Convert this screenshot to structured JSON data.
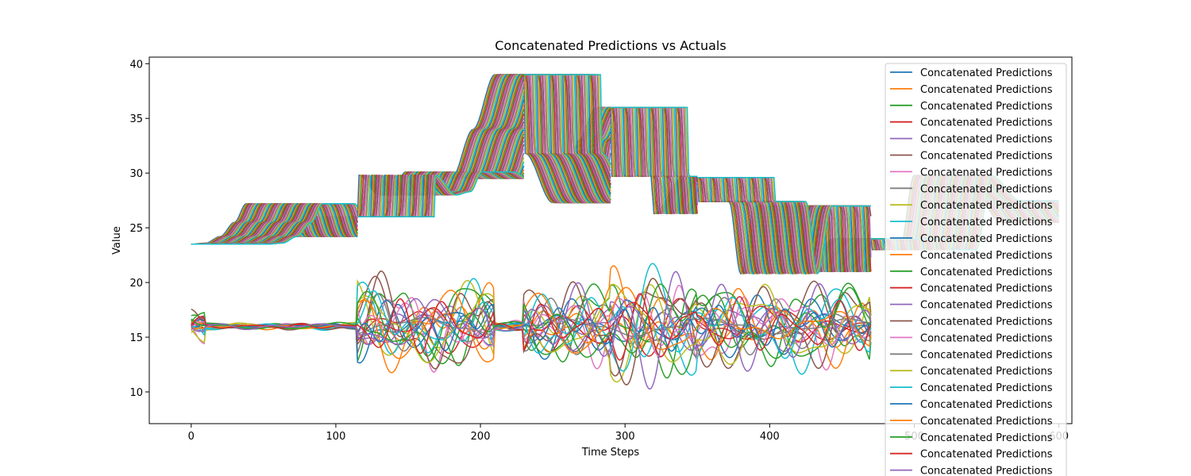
{
  "chart_data": {
    "type": "line",
    "title": "Concatenated Predictions vs Actuals",
    "xlabel": "Time Steps",
    "ylabel": "Value",
    "xlim": [
      -29,
      609
    ],
    "ylim": [
      7.1,
      40.6
    ],
    "xticks": [
      0,
      100,
      200,
      300,
      400,
      500,
      600
    ],
    "yticks": [
      10,
      15,
      20,
      25,
      30,
      35,
      40
    ],
    "grid": false,
    "legend_position": "upper-right",
    "legend_entries": [
      "Concatenated Predictions",
      "Concatenated Predictions",
      "Concatenated Predictions",
      "Concatenated Predictions",
      "Concatenated Predictions",
      "Concatenated Predictions",
      "Concatenated Predictions",
      "Concatenated Predictions",
      "Concatenated Predictions",
      "Concatenated Predictions",
      "Concatenated Predictions",
      "Concatenated Predictions",
      "Concatenated Predictions",
      "Concatenated Predictions",
      "Concatenated Predictions",
      "Concatenated Predictions",
      "Concatenated Predictions",
      "Concatenated Predictions",
      "Concatenated Predictions",
      "Concatenated Predictions",
      "Concatenated Predictions",
      "Concatenated Predictions",
      "Concatenated Predictions",
      "Concatenated Predictions",
      "Concatenated Predictions"
    ],
    "colors": [
      "#1f77b4",
      "#ff7f0e",
      "#2ca02c",
      "#d62728",
      "#9467bd",
      "#8c564b",
      "#e377c2",
      "#7f7f7f",
      "#bcbd22",
      "#17becf"
    ],
    "actual_profile": {
      "x": [
        0,
        10,
        20,
        30,
        38,
        60,
        70,
        80,
        85,
        115,
        116,
        130,
        140,
        148,
        170,
        180,
        195,
        210,
        230,
        231,
        250,
        260,
        268,
        280,
        290,
        291,
        300,
        318,
        320,
        340,
        350,
        351,
        372,
        380,
        390,
        420,
        422,
        445,
        450,
        470,
        471,
        490,
        500,
        520,
        545,
        560,
        600
      ],
      "y": [
        23.5,
        23.6,
        24.2,
        25.5,
        27.2,
        27.2,
        24.2,
        24.5,
        26.0,
        26.0,
        29.8,
        28.0,
        28.3,
        30.1,
        30.1,
        29.5,
        34.0,
        39.0,
        39.0,
        31.8,
        27.3,
        27.3,
        33.0,
        36.0,
        36.0,
        29.7,
        29.7,
        29.7,
        26.3,
        29.6,
        29.6,
        27.4,
        27.4,
        20.8,
        27.0,
        27.0,
        21.0,
        24.0,
        24.0,
        24.0,
        23.0,
        23.0,
        29.8,
        27.5,
        27.5,
        25.5,
        25.5
      ]
    },
    "band_series_count": 60,
    "band_lag_steps": 0.9,
    "prediction_series_count": 25,
    "prediction_baseline": 16.0,
    "prediction_high_variance_ranges": [
      [
        115,
        210
      ],
      [
        230,
        290
      ],
      [
        290,
        350
      ],
      [
        350,
        470
      ]
    ]
  }
}
